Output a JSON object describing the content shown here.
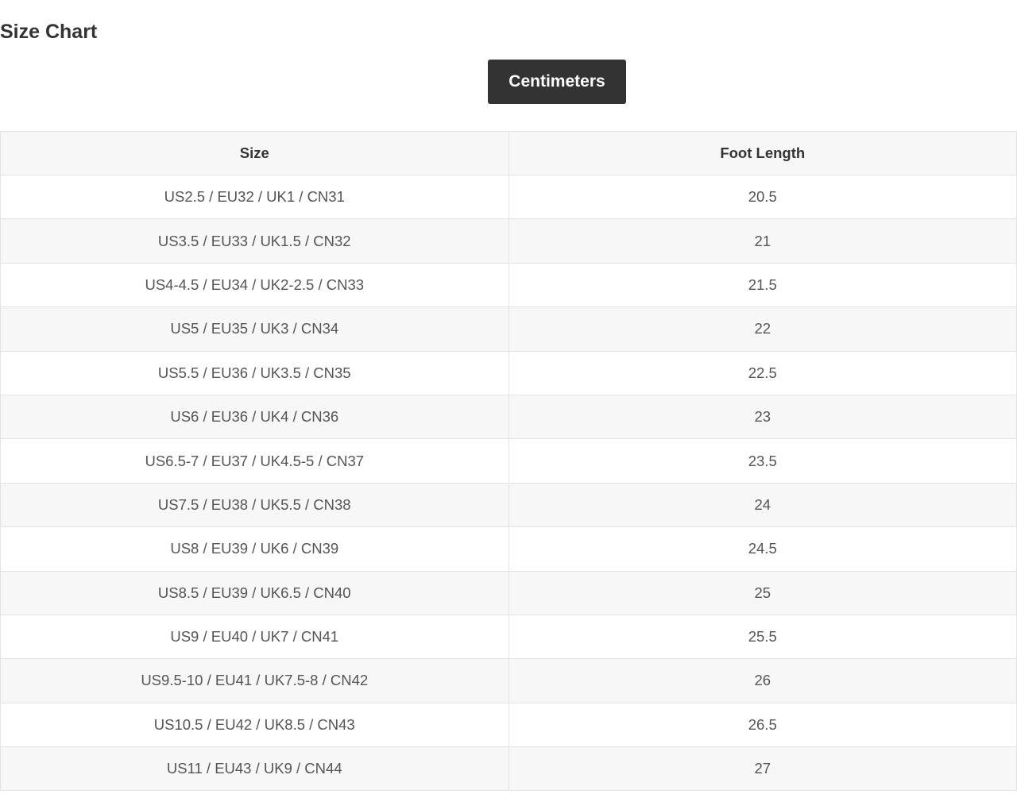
{
  "title": "Size Chart",
  "unit_button": "Centimeters",
  "table": {
    "headers": [
      "Size",
      "Foot Length"
    ],
    "rows": [
      [
        "US2.5 / EU32 / UK1 / CN31",
        "20.5"
      ],
      [
        "US3.5 / EU33 / UK1.5 / CN32",
        "21"
      ],
      [
        "US4-4.5 / EU34 / UK2-2.5 / CN33",
        "21.5"
      ],
      [
        "US5 / EU35 / UK3 / CN34",
        "22"
      ],
      [
        "US5.5 / EU36 / UK3.5 / CN35",
        "22.5"
      ],
      [
        "US6 / EU36 / UK4 / CN36",
        "23"
      ],
      [
        "US6.5-7 / EU37 / UK4.5-5 / CN37",
        "23.5"
      ],
      [
        "US7.5 / EU38 / UK5.5 / CN38",
        "24"
      ],
      [
        "US8 / EU39 / UK6 / CN39",
        "24.5"
      ],
      [
        "US8.5 / EU39 / UK6.5 / CN40",
        "25"
      ],
      [
        "US9 / EU40 / UK7 / CN41",
        "25.5"
      ],
      [
        "US9.5-10 / EU41 / UK7.5-8 / CN42",
        "26"
      ],
      [
        "US10.5 / EU42 / UK8.5 / CN43",
        "26.5"
      ],
      [
        "US11 / EU43 / UK9 / CN44",
        "27"
      ]
    ]
  }
}
